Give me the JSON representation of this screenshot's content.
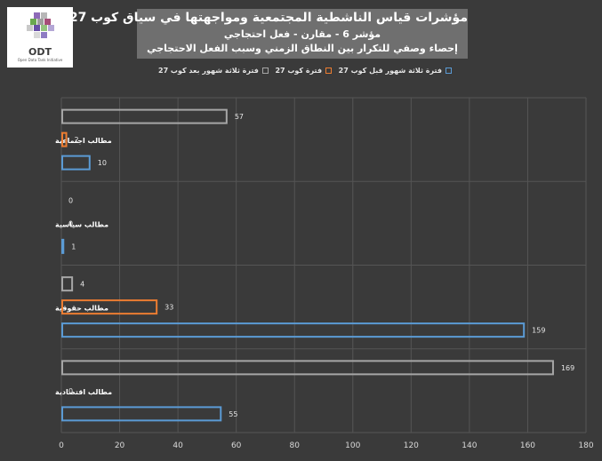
{
  "logo": {
    "text": "ODT",
    "subtitle": "Open Data Tank Initiative"
  },
  "chart_data": {
    "type": "bar",
    "orientation": "horizontal",
    "title": "مؤشرات قياس الناشطية المجتمعية ومواجهتها في سياق كوب 27",
    "subtitle_lines": [
      "مؤشر 6 - مقارن - فعل احتجاجي",
      "إحصاء وصفي للتكرار بين النطاق الزمني وسبب الفعل الاحتجاجي"
    ],
    "categories": [
      "مطالب اجتماعية",
      "مطالب سياسية",
      "مطالب حقوقية",
      "مطالب اقتصادية"
    ],
    "series": [
      {
        "name": "فترة ثلاثة شهور بعد كوب 27",
        "color": "#a6a6a6",
        "values": [
          57,
          0,
          4,
          169
        ]
      },
      {
        "name": "فترة كوب 27",
        "color": "#ed7d31",
        "values": [
          2,
          0,
          33,
          0
        ]
      },
      {
        "name": "فترة ثلاثة شهور قبل كوب 27",
        "color": "#5b9bd5",
        "values": [
          10,
          1,
          159,
          55
        ]
      }
    ],
    "xlim": [
      0,
      180
    ],
    "xticks": [
      0,
      20,
      40,
      60,
      80,
      100,
      120,
      140,
      160,
      180
    ],
    "grid": true,
    "legend_position": "top"
  }
}
